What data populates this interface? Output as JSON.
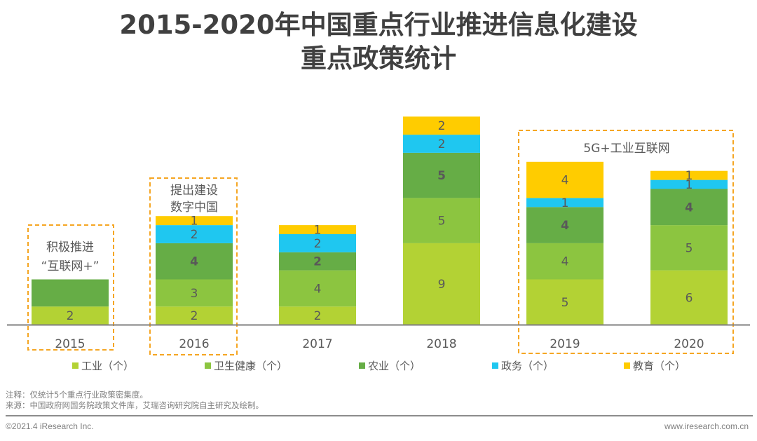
{
  "header": {
    "title_line1": "2015-2020年中国重点行业推进信息化建设",
    "title_line2": "重点政策统计"
  },
  "chart_data": {
    "type": "bar",
    "stacked": true,
    "title": "2015-2020年中国重点行业推进信息化建设重点政策统计",
    "xlabel": "",
    "ylabel": "",
    "categories": [
      "2015",
      "2016",
      "2017",
      "2018",
      "2019",
      "2020"
    ],
    "series": [
      {
        "name": "工业（个）",
        "color": "#b3d234",
        "values": [
          2,
          2,
          2,
          9,
          5,
          6
        ],
        "labels": [
          "2",
          "2",
          "2",
          "9",
          "5",
          "6"
        ]
      },
      {
        "name": "卫生健康（个）",
        "color": "#8cc540",
        "values": [
          0,
          3,
          4,
          5,
          4,
          5
        ],
        "labels": [
          "",
          "3",
          "4",
          "5",
          "4",
          "5"
        ]
      },
      {
        "name": "农业（个）",
        "color": "#66ad46",
        "values": [
          3,
          4,
          2,
          5,
          4,
          4
        ],
        "labels": [
          "",
          "4",
          "2",
          "5",
          "4",
          "4"
        ]
      },
      {
        "name": "政务（个）",
        "color": "#1fc7f0",
        "values": [
          0,
          2,
          2,
          2,
          1,
          1
        ],
        "labels": [
          "",
          "2",
          "2",
          "2",
          "1",
          "1"
        ]
      },
      {
        "name": "教育（个）",
        "color": "#ffcc00",
        "values": [
          0,
          1,
          1,
          2,
          4,
          1
        ],
        "labels": [
          "",
          "1",
          "1",
          "2",
          "4",
          "1"
        ]
      }
    ],
    "ylim": [
      0,
      25
    ],
    "grid": false,
    "y_axis_visible": false,
    "legend_position": "bottom",
    "annotations": [
      {
        "text_lines": [
          "积极推进",
          "“互联网+”"
        ],
        "categories": [
          "2015"
        ],
        "style": "dashed-box",
        "color": "#f5a623"
      },
      {
        "text_lines": [
          "提出建设",
          "数字中国"
        ],
        "categories": [
          "2016"
        ],
        "style": "dashed-box",
        "color": "#f5a623"
      },
      {
        "text_lines": [
          "5G+工业互联网"
        ],
        "categories": [
          "2019",
          "2020"
        ],
        "style": "dashed-box",
        "color": "#f5a623"
      }
    ],
    "note_2015_agriculture": "segment shown without label; value estimated from height"
  },
  "notes": {
    "note": "注释：仅统计5个重点行业政策密集度。",
    "source": "来源：中国政府网国务院政策文件库，艾瑞咨询研究院自主研究及绘制。"
  },
  "footer": {
    "copyright": "©2021.4 iResearch Inc.",
    "website": "www.iresearch.com.cn"
  }
}
